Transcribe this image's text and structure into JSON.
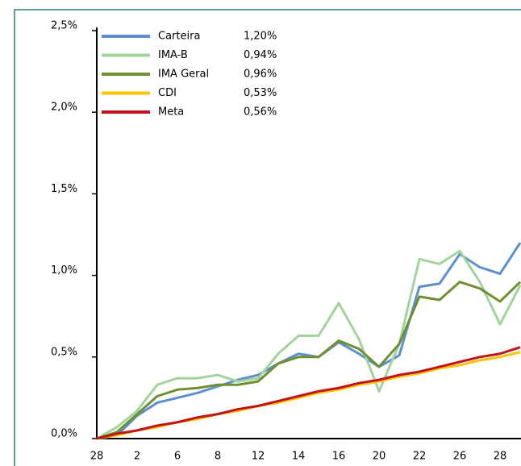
{
  "chart_data": {
    "type": "line",
    "categories": [
      "28",
      null,
      "2",
      null,
      "6",
      null,
      "8",
      null,
      "12",
      null,
      "14",
      null,
      "16",
      null,
      "20",
      null,
      "22",
      null,
      "26",
      null,
      "28",
      null
    ],
    "ylim": [
      0,
      2.5
    ],
    "yticks": [
      {
        "value": 0,
        "label": "0,0%"
      },
      {
        "value": 0.5,
        "label": "0,5%"
      },
      {
        "value": 1,
        "label": "1,0%"
      },
      {
        "value": 1.5,
        "label": "1,5%"
      },
      {
        "value": 2,
        "label": "2,0%"
      },
      {
        "value": 2.5,
        "label": "2,5%"
      }
    ],
    "legend": "top-left",
    "series": [
      {
        "name": "Carteira",
        "color": "#5b8fd0",
        "last_value_label": "1,20%",
        "values": [
          0,
          0.02,
          0.14,
          0.22,
          0.25,
          0.28,
          0.32,
          0.36,
          0.39,
          0.46,
          0.52,
          0.5,
          0.59,
          0.52,
          0.44,
          0.51,
          0.93,
          0.95,
          1.13,
          1.05,
          1.01,
          1.2
        ]
      },
      {
        "name": "IMA-B",
        "color": "#a3d39c",
        "last_value_label": "0,94%",
        "values": [
          0,
          0.07,
          0.17,
          0.33,
          0.37,
          0.37,
          0.39,
          0.35,
          0.37,
          0.52,
          0.63,
          0.63,
          0.83,
          0.61,
          0.29,
          0.58,
          1.1,
          1.07,
          1.15,
          0.96,
          0.7,
          0.94
        ]
      },
      {
        "name": "IMA Geral",
        "color": "#6f8f30",
        "last_value_label": "0,96%",
        "values": [
          0,
          0.04,
          0.15,
          0.26,
          0.3,
          0.31,
          0.33,
          0.33,
          0.35,
          0.46,
          0.5,
          0.5,
          0.6,
          0.55,
          0.44,
          0.58,
          0.87,
          0.85,
          0.96,
          0.92,
          0.84,
          0.96
        ]
      },
      {
        "name": "CDI",
        "color": "#ffc000",
        "last_value_label": "0,53%",
        "values": [
          0,
          0.02,
          0.05,
          0.07,
          0.1,
          0.12,
          0.15,
          0.17,
          0.2,
          0.22,
          0.25,
          0.28,
          0.3,
          0.33,
          0.35,
          0.38,
          0.4,
          0.43,
          0.45,
          0.48,
          0.5,
          0.53
        ]
      },
      {
        "name": "Meta",
        "color": "#c0141c",
        "last_value_label": "0,56%",
        "values": [
          0,
          0.03,
          0.05,
          0.08,
          0.1,
          0.13,
          0.15,
          0.18,
          0.2,
          0.23,
          0.26,
          0.29,
          0.31,
          0.34,
          0.36,
          0.39,
          0.41,
          0.44,
          0.47,
          0.5,
          0.52,
          0.56
        ]
      }
    ]
  }
}
